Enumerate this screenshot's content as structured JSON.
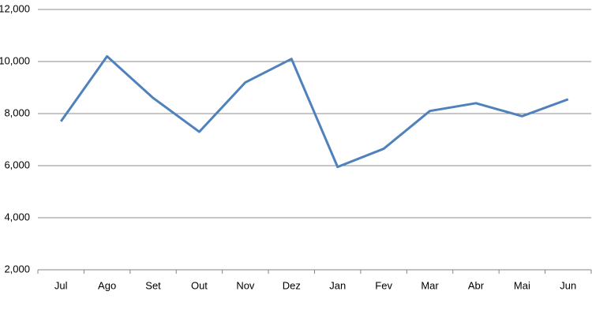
{
  "chart_data": {
    "type": "line",
    "categories": [
      "Jul",
      "Ago",
      "Set",
      "Out",
      "Nov",
      "Dez",
      "Jan",
      "Fev",
      "Mar",
      "Abr",
      "Mai",
      "Jun"
    ],
    "series": [
      {
        "color": "#4f81bd",
        "values": [
          7700,
          10200,
          8600,
          7300,
          9200,
          10100,
          5950,
          6650,
          8100,
          8400,
          7900,
          8550
        ]
      }
    ],
    "ylim": [
      2000,
      12000
    ],
    "yticks": [
      {
        "value": 2000,
        "label": "2,000"
      },
      {
        "value": 4000,
        "label": "4,000"
      },
      {
        "value": 6000,
        "label": "6,000"
      },
      {
        "value": 8000,
        "label": "8,000"
      },
      {
        "value": 10000,
        "label": "10,000"
      },
      {
        "value": 12000,
        "label": "12,000"
      }
    ],
    "grid": true
  }
}
